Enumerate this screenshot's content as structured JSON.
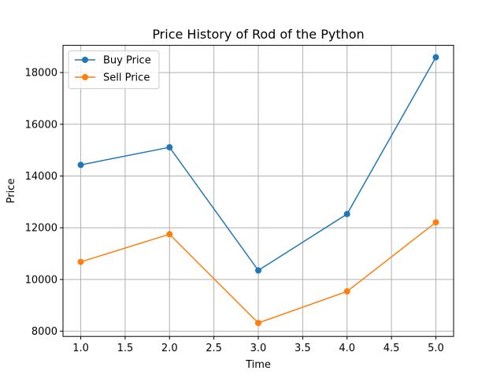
{
  "chart_data": {
    "type": "line",
    "title": "Price History of Rod of the Python",
    "xlabel": "Time",
    "ylabel": "Price",
    "x": [
      1,
      2,
      3,
      4,
      5
    ],
    "xlim": [
      0.8,
      5.2
    ],
    "ylim": [
      7800,
      19050
    ],
    "xticks": [
      1.0,
      1.5,
      2.0,
      2.5,
      3.0,
      3.5,
      4.0,
      4.5,
      5.0
    ],
    "xtick_labels": [
      "1.0",
      "1.5",
      "2.0",
      "2.5",
      "3.0",
      "3.5",
      "4.0",
      "4.5",
      "5.0"
    ],
    "yticks": [
      8000,
      10000,
      12000,
      14000,
      16000,
      18000
    ],
    "ytick_labels": [
      "8000",
      "10000",
      "12000",
      "14000",
      "16000",
      "18000"
    ],
    "grid": true,
    "legend_position": "upper-left",
    "series": [
      {
        "name": "Buy Price",
        "color": "#1f77b4",
        "marker": "circle",
        "values": [
          14430,
          15110,
          10350,
          12530,
          18590
        ]
      },
      {
        "name": "Sell Price",
        "color": "#ff7f0e",
        "marker": "circle",
        "values": [
          10680,
          11750,
          8320,
          9540,
          12210
        ]
      }
    ]
  }
}
